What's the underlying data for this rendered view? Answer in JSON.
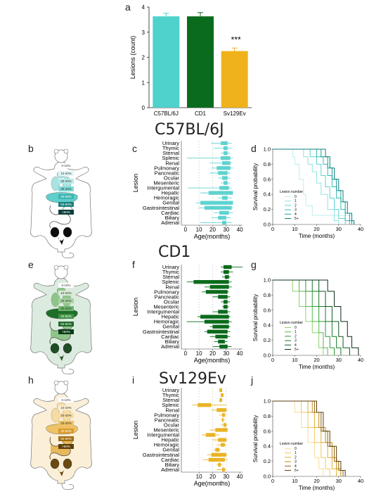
{
  "panels": {
    "a": "a",
    "b": "b",
    "c": "c",
    "d": "d",
    "e": "e",
    "f": "f",
    "g": "g",
    "h": "h",
    "i": "i",
    "j": "j"
  },
  "strain_titles": [
    "C57BL/6J",
    "CD1",
    "Sv129Ev"
  ],
  "chart_data": [
    {
      "id": "a",
      "type": "bar",
      "categories": [
        "C57BL/6J",
        "CD1",
        "Sv129Ev"
      ],
      "values": [
        3.63,
        3.63,
        2.25
      ],
      "errors": [
        0.12,
        0.15,
        0.12
      ],
      "colors": [
        "#4fd1cc",
        "#0b6b1c",
        "#f0b21a"
      ],
      "ylabel": "Lesions (count)",
      "ylim": [
        0,
        4
      ],
      "yticks": [
        0,
        1,
        2,
        3,
        4
      ],
      "annotation": "***"
    },
    {
      "id": "c",
      "type": "bar",
      "strain": "C57BL/6J",
      "color": "#5fd3d0",
      "ylabel": "Lesion",
      "xlabel": "Age(months)",
      "xticks": [
        0,
        10,
        20,
        30,
        40
      ],
      "xlim": [
        -3,
        42
      ],
      "categories": [
        "Urinary",
        "Thymic",
        "Sternal",
        "Splenic",
        "Renal",
        "Pulmonary",
        "Pancreatic",
        "Ocular",
        "Mesenteric",
        "Intergumental",
        "Hepatic",
        "Hemoragic",
        "Genital",
        "Gastrointestinal",
        "Cardiac",
        "Biliary",
        "Adrenal"
      ],
      "ranges": [
        [
          19,
          34,
          26,
          31
        ],
        [
          21,
          34,
          28,
          31
        ],
        [
          26,
          33,
          28,
          31
        ],
        [
          1,
          35,
          26,
          33
        ],
        [
          18,
          34,
          27,
          33
        ],
        [
          19,
          35,
          23,
          33
        ],
        [
          18,
          33,
          24,
          31
        ],
        [
          24,
          33,
          27,
          31
        ],
        [
          26,
          33,
          28,
          31
        ],
        [
          2,
          34,
          25,
          32
        ],
        [
          11,
          35,
          17,
          35
        ],
        [
          24,
          34,
          27,
          31
        ],
        [
          8,
          35,
          11,
          35
        ],
        [
          10,
          35,
          14,
          34
        ],
        [
          21,
          35,
          25,
          32
        ],
        [
          19,
          33,
          24,
          30
        ],
        [
          11,
          34,
          27,
          30
        ]
      ]
    },
    {
      "id": "d",
      "type": "line",
      "strain": "C57BL/6J",
      "xlabel": "Time (months)",
      "ylabel": "Survival probability",
      "xticks": [
        0,
        10,
        20,
        30,
        40
      ],
      "yticks": [
        0.0,
        0.2,
        0.4,
        0.6,
        0.8,
        1.0
      ],
      "xlim": [
        0,
        40
      ],
      "ylim": [
        0,
        1
      ],
      "legend_title": "Lesion number",
      "series": [
        {
          "name": "0",
          "color": "#bfeeee",
          "x": [
            0,
            8,
            9,
            10,
            12,
            14,
            15,
            18,
            36
          ],
          "y": [
            1,
            1,
            0.9,
            0.8,
            0.6,
            0.4,
            0.25,
            0.12,
            0.12
          ]
        },
        {
          "name": "1",
          "color": "#8fe3e0",
          "x": [
            0,
            12,
            14,
            16,
            18,
            20,
            22,
            25,
            28,
            30
          ],
          "y": [
            1,
            1,
            0.9,
            0.8,
            0.7,
            0.55,
            0.4,
            0.2,
            0.05,
            0
          ]
        },
        {
          "name": "2",
          "color": "#5fd3d0",
          "x": [
            0,
            14,
            17,
            20,
            22,
            24,
            26,
            28,
            30,
            33
          ],
          "y": [
            1,
            1,
            0.9,
            0.8,
            0.65,
            0.5,
            0.35,
            0.2,
            0.08,
            0
          ]
        },
        {
          "name": "3",
          "color": "#34bcb8",
          "x": [
            0,
            16,
            20,
            23,
            25,
            27,
            29,
            31,
            33,
            35
          ],
          "y": [
            1,
            1,
            0.9,
            0.8,
            0.65,
            0.5,
            0.35,
            0.2,
            0.05,
            0
          ]
        },
        {
          "name": "4",
          "color": "#1d9e9a",
          "x": [
            0,
            18,
            22,
            25,
            27,
            29,
            31,
            33,
            35,
            36
          ],
          "y": [
            1,
            1,
            0.9,
            0.75,
            0.6,
            0.45,
            0.3,
            0.15,
            0.05,
            0
          ]
        },
        {
          "name": "5+",
          "color": "#0f7f7b",
          "x": [
            0,
            20,
            24,
            26,
            28,
            30,
            32,
            34,
            36,
            37
          ],
          "y": [
            1,
            1,
            0.9,
            0.75,
            0.6,
            0.45,
            0.3,
            0.15,
            0.05,
            0
          ]
        }
      ]
    },
    {
      "id": "f",
      "type": "bar",
      "strain": "CD1",
      "color": "#0b6b1c",
      "ylabel": "Lesion",
      "xlabel": "Age(months)",
      "xticks": [
        0,
        10,
        20,
        30,
        40
      ],
      "xlim": [
        -3,
        42
      ],
      "categories": [
        "Urinary",
        "Thymic",
        "Sternal",
        "Splenic",
        "Renal",
        "Pulmonary",
        "Pancreatic",
        "Ocular",
        "Mesenteric",
        "Intergumental",
        "Hepatic",
        "Hemoragic",
        "Genital",
        "Gastrointestinal",
        "Cardiac",
        "Biliary",
        "Adrenal"
      ],
      "ranges": [
        [
          26,
          42,
          28,
          34
        ],
        [
          26,
          35,
          28,
          32
        ],
        [
          27,
          33,
          29,
          32
        ],
        [
          1,
          34,
          6,
          32
        ],
        [
          14,
          34,
          18,
          32
        ],
        [
          12,
          32,
          15,
          31
        ],
        [
          20,
          33,
          24,
          31
        ],
        [
          26,
          33,
          28,
          31
        ],
        [
          27,
          32,
          28,
          31
        ],
        [
          20,
          33,
          24,
          31
        ],
        [
          9,
          33,
          11,
          32
        ],
        [
          1,
          34,
          14,
          32
        ],
        [
          18,
          33,
          20,
          32
        ],
        [
          14,
          33,
          16,
          31
        ],
        [
          18,
          33,
          22,
          31
        ],
        [
          21,
          31,
          24,
          29
        ],
        [
          20,
          34,
          25,
          31
        ]
      ]
    },
    {
      "id": "g",
      "type": "line",
      "strain": "CD1",
      "xlabel": "Time (months)",
      "ylabel": "Survival probability",
      "xticks": [
        0,
        10,
        20,
        30,
        40
      ],
      "yticks": [
        0.0,
        0.2,
        0.4,
        0.6,
        0.8,
        1.0
      ],
      "xlim": [
        0,
        40
      ],
      "ylim": [
        0,
        1
      ],
      "legend_title": "Lesion number",
      "series": [
        {
          "name": "0",
          "color": "#8ed16f",
          "x": [
            0,
            6,
            9,
            12,
            15,
            18,
            21,
            23
          ],
          "y": [
            1,
            1,
            0.85,
            0.65,
            0.45,
            0.3,
            0.1,
            0
          ]
        },
        {
          "name": "1",
          "color": "#56b84a",
          "x": [
            0,
            9,
            12,
            15,
            18,
            21,
            23,
            25
          ],
          "y": [
            1,
            1,
            0.85,
            0.65,
            0.45,
            0.3,
            0.1,
            0
          ]
        },
        {
          "name": "2",
          "color": "#2e9a34",
          "x": [
            0,
            12,
            15,
            18,
            21,
            24,
            26,
            28
          ],
          "y": [
            1,
            1,
            0.85,
            0.65,
            0.45,
            0.25,
            0.1,
            0
          ]
        },
        {
          "name": "3",
          "color": "#16792a",
          "x": [
            0,
            15,
            18,
            21,
            24,
            27,
            29,
            31
          ],
          "y": [
            1,
            1,
            0.85,
            0.65,
            0.45,
            0.25,
            0.1,
            0
          ]
        },
        {
          "name": "4",
          "color": "#0b5a20",
          "x": [
            0,
            18,
            21,
            24,
            27,
            30,
            32,
            35
          ],
          "y": [
            1,
            1,
            0.85,
            0.65,
            0.45,
            0.25,
            0.1,
            0
          ]
        },
        {
          "name": "5+",
          "color": "#0a2d14",
          "x": [
            0,
            22,
            25,
            28,
            31,
            34,
            36,
            39
          ],
          "y": [
            1,
            1,
            0.85,
            0.65,
            0.45,
            0.25,
            0.1,
            0
          ]
        }
      ]
    },
    {
      "id": "i",
      "type": "bar",
      "strain": "Sv129Ev",
      "color": "#e9b425",
      "ylabel": "Lesion",
      "xlabel": "Age(months)",
      "xticks": [
        10,
        20,
        30,
        40
      ],
      "xlim": [
        -3,
        42
      ],
      "categories": [
        "Urinary",
        "Thymic",
        "Sternal",
        "Splenic",
        "Renal",
        "Pulmonary",
        "Pancreatic",
        "Ocular",
        "Mesenteric",
        "Intergumental",
        "Hepatic",
        "Hemoragic",
        "Genital",
        "Gastrointestinal",
        "Cardiac",
        "Biliary",
        "Adrenal"
      ],
      "ranges": [
        [
          25,
          27,
          25,
          27
        ],
        [
          26,
          28,
          26,
          28
        ],
        [
          25,
          27,
          25,
          27
        ],
        [
          5,
          30,
          9,
          19
        ],
        [
          19,
          31,
          23,
          30
        ],
        [
          25,
          30,
          27,
          29
        ],
        [
          26,
          29,
          27,
          28
        ],
        [
          26,
          31,
          28,
          30
        ],
        [
          18,
          31,
          22,
          31
        ],
        [
          12,
          25,
          15,
          22
        ],
        [
          20,
          31,
          24,
          30
        ],
        [
          23,
          30,
          26,
          29
        ],
        [
          21,
          26,
          22,
          25
        ],
        [
          16,
          31,
          19,
          30
        ],
        [
          13,
          31,
          17,
          29
        ],
        [
          23,
          27,
          24,
          26
        ],
        [
          23,
          30,
          27,
          29
        ]
      ]
    },
    {
      "id": "j",
      "type": "line",
      "strain": "Sv129Ev",
      "xlabel": "Time (months)",
      "ylabel": "Survival probability",
      "xticks": [
        0,
        10,
        20,
        30,
        40
      ],
      "yticks": [
        0.0,
        0.2,
        0.4,
        0.6,
        0.8,
        1.0
      ],
      "xlim": [
        0,
        40
      ],
      "ylim": [
        0,
        1
      ],
      "legend_title": "Lesion number",
      "series": [
        {
          "name": "0",
          "color": "#f5dd9b",
          "x": [
            0,
            8,
            10,
            13,
            16,
            19,
            21,
            23
          ],
          "y": [
            1,
            1,
            0.85,
            0.65,
            0.45,
            0.25,
            0.1,
            0
          ]
        },
        {
          "name": "1",
          "color": "#f0c75a",
          "x": [
            0,
            10,
            13,
            16,
            19,
            22,
            24,
            26
          ],
          "y": [
            1,
            1,
            0.85,
            0.65,
            0.45,
            0.25,
            0.1,
            0
          ]
        },
        {
          "name": "2",
          "color": "#e0ad2a",
          "x": [
            0,
            13,
            16,
            19,
            22,
            25,
            27,
            29
          ],
          "y": [
            1,
            1,
            0.85,
            0.65,
            0.45,
            0.25,
            0.1,
            0
          ]
        },
        {
          "name": "3",
          "color": "#c08d19",
          "x": [
            0,
            15,
            18,
            21,
            24,
            27,
            29,
            31
          ],
          "y": [
            1,
            1,
            0.85,
            0.65,
            0.45,
            0.25,
            0.1,
            0
          ]
        },
        {
          "name": "4",
          "color": "#8f6512",
          "x": [
            0,
            16,
            19,
            22,
            25,
            28,
            30,
            32
          ],
          "y": [
            1,
            1,
            0.85,
            0.6,
            0.4,
            0.2,
            0.08,
            0
          ]
        },
        {
          "name": "5+",
          "color": "#5a3e0b",
          "x": [
            0,
            17,
            20,
            23,
            26,
            29,
            31,
            33
          ],
          "y": [
            1,
            1,
            0.85,
            0.6,
            0.4,
            0.2,
            0.08,
            0
          ]
        }
      ]
    }
  ],
  "heat_legends": [
    {
      "id": "b",
      "labels": [
        "0-10%",
        "10-20%",
        "20-30%",
        "30-40%",
        "40-50%",
        "50-60%",
        ">60%"
      ],
      "colors": [
        "#ffffff",
        "#e2f7f6",
        "#b7ebea",
        "#7fd9d6",
        "#3fb5b2",
        "#1c807d",
        "#0d3e3c"
      ]
    },
    {
      "id": "e",
      "labels": [
        "0-10%",
        "10-20%",
        "20-30%",
        "30-40%",
        "40-50%",
        "50-60%",
        ">60%"
      ],
      "colors": [
        "#ffffff",
        "#d7ebd4",
        "#a7d3a2",
        "#6fb66d",
        "#3e9143",
        "#1f6b2a",
        "#0b3b16"
      ]
    },
    {
      "id": "h",
      "labels": [
        "0-10%",
        "10-20%",
        "20-30%",
        "30-40%",
        "40-50%",
        "50-60%",
        ">60%"
      ],
      "colors": [
        "#ffffff",
        "#fbefd3",
        "#f6dca1",
        "#eec266",
        "#d89b2c",
        "#a46f12",
        "#5e3f09"
      ]
    }
  ],
  "mouse_fill": [
    "#ffffff",
    "#dcebdf",
    "#fbefd8"
  ],
  "organ_colors": [
    {
      "thymus": "#a9e3e1",
      "lung": "#a9e3e1",
      "liver": "#5fcfcb",
      "gut": "#ffffff",
      "genital": "#0d0d0d"
    },
    {
      "thymus": "#8fc58a",
      "lung": "#8fc58a",
      "liver": "#1e6d28",
      "gut": "#8fc58a",
      "genital": "#1f4d24"
    },
    {
      "thymus": "#f4dca3",
      "lung": "#f4dca3",
      "liver": "#eec266",
      "gut": "#e7b95a",
      "genital": "#6a4a10"
    }
  ]
}
